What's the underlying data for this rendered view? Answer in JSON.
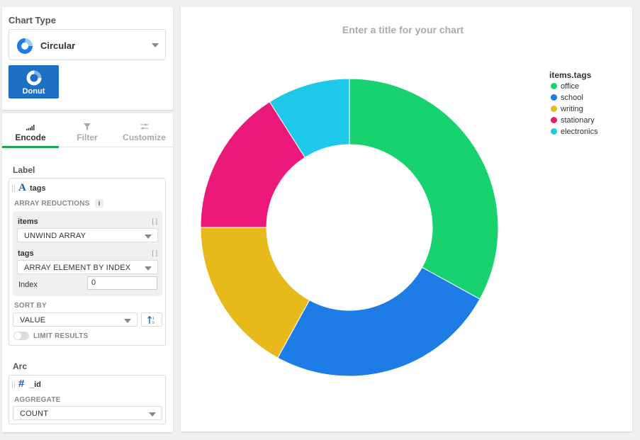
{
  "chart_type_panel": {
    "title": "Chart Type",
    "selected": "Circular",
    "subtype_label": "Donut"
  },
  "tabs": [
    "Encode",
    "Filter",
    "Customize"
  ],
  "label_section": {
    "title": "Label",
    "field": "tags",
    "array_reductions_label": "ARRAY REDUCTIONS",
    "info": "i",
    "reductions": [
      {
        "name": "items",
        "method": "UNWIND ARRAY"
      },
      {
        "name": "tags",
        "method": "ARRAY ELEMENT BY INDEX"
      }
    ],
    "index_label": "Index",
    "index_value": "0",
    "sort_by_label": "SORT BY",
    "sort_by_value": "VALUE",
    "limit_label": "LIMIT RESULTS"
  },
  "arc_section": {
    "title": "Arc",
    "field": "_id",
    "aggregate_label": "AGGREGATE",
    "aggregate_value": "COUNT"
  },
  "chart_data": {
    "type": "pie",
    "variant": "donut",
    "title": "Enter a title for your chart",
    "legend_title": "items.tags",
    "legend_position": "top-right",
    "categories": [
      "office",
      "school",
      "writing",
      "stationary",
      "electronics"
    ],
    "values": [
      33,
      25,
      17,
      16,
      9
    ],
    "colors": [
      "#17d26e",
      "#1d7ce6",
      "#e8b91a",
      "#eb1a7a",
      "#1ec8e8"
    ]
  }
}
